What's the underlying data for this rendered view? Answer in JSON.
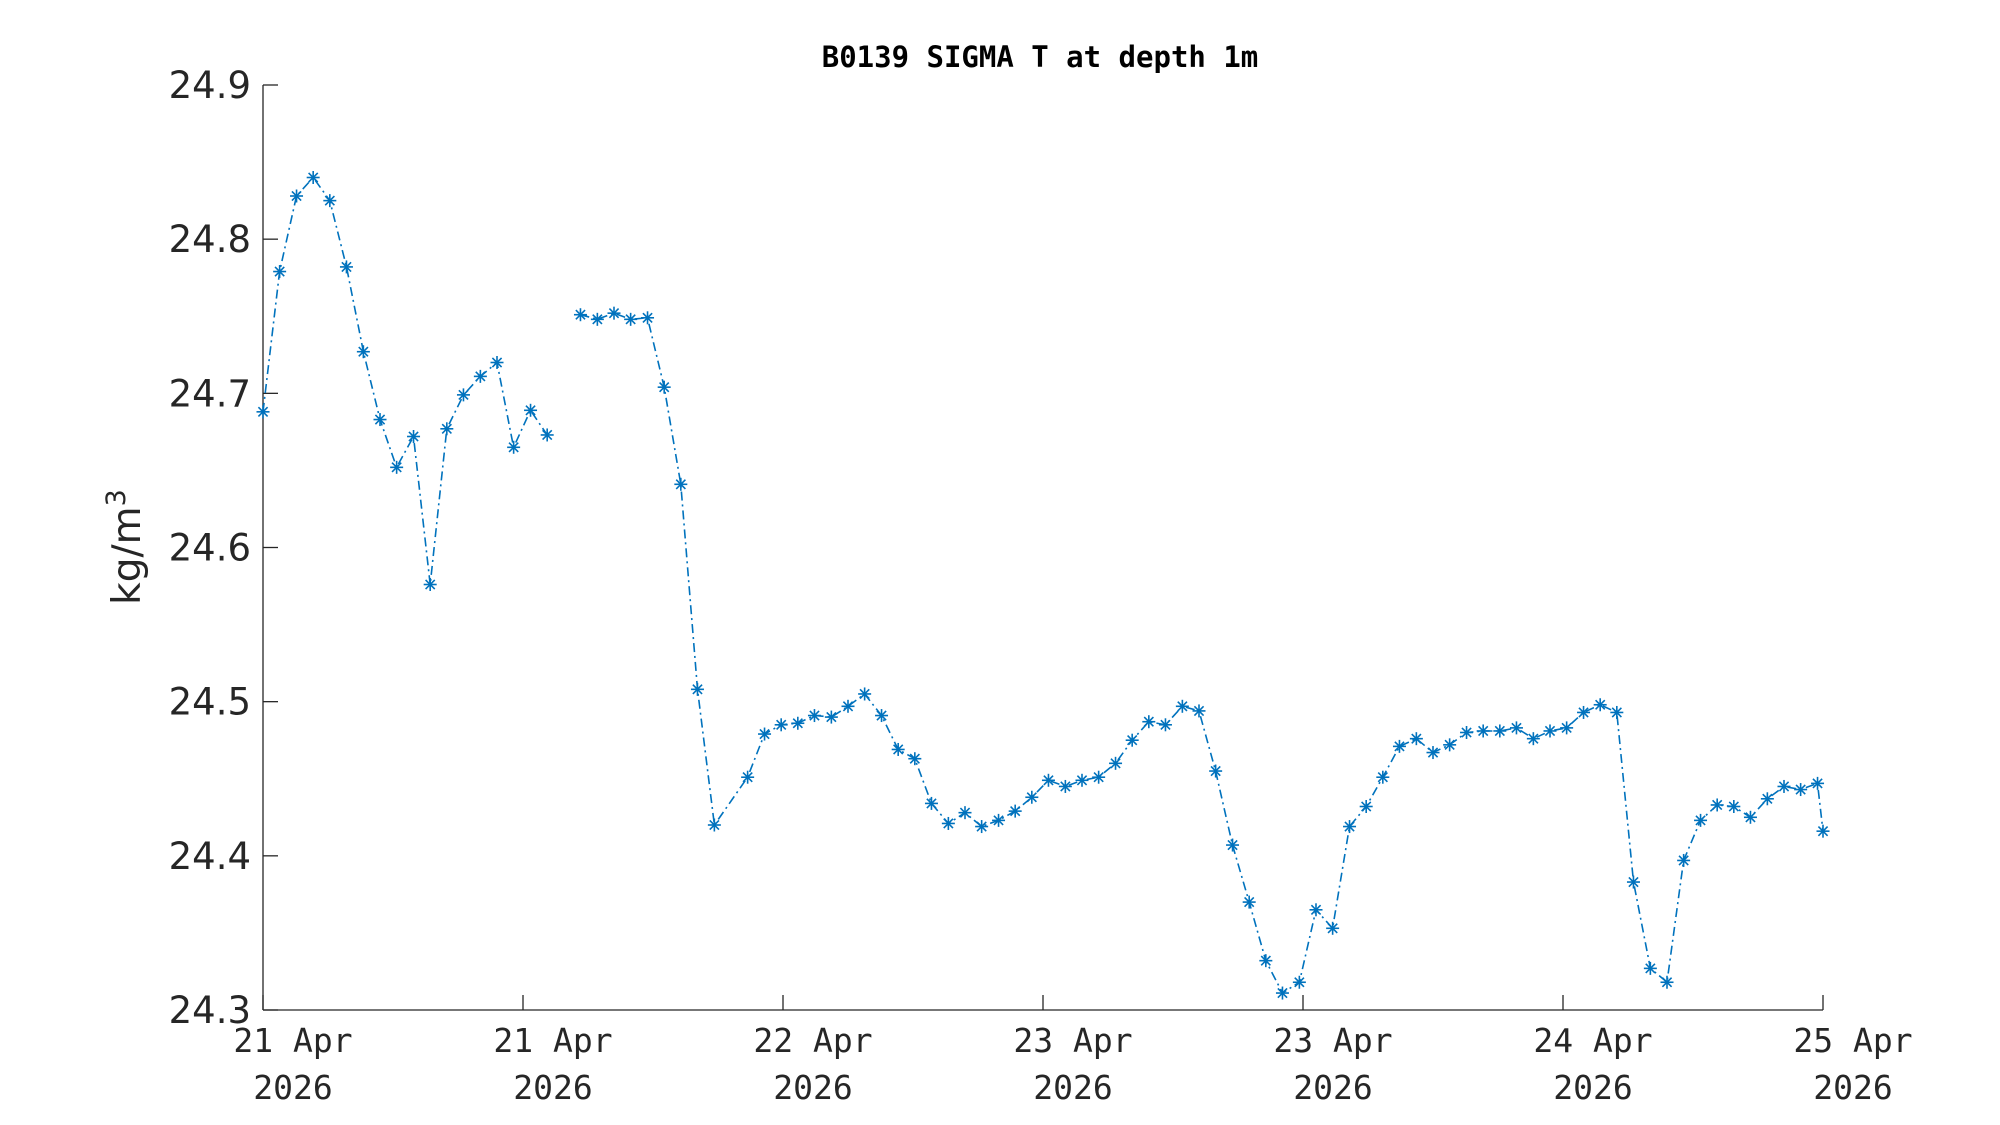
{
  "chart_data": {
    "type": "line",
    "title": "B0139 SIGMA T at depth 1m",
    "ylabel": "kg/m",
    "ylabel_sup": "3",
    "xlabel": "",
    "ylim": [
      24.3,
      24.9
    ],
    "yticks": [
      "24.3",
      "24.4",
      "24.5",
      "24.6",
      "24.7",
      "24.8",
      "24.9"
    ],
    "xlim_days": [
      0,
      6
    ],
    "xticks": [
      {
        "day": "21 Apr",
        "year": "2026"
      },
      {
        "day": "21 Apr",
        "year": "2026"
      },
      {
        "day": "22 Apr",
        "year": "2026"
      },
      {
        "day": "23 Apr",
        "year": "2026"
      },
      {
        "day": "23 Apr",
        "year": "2026"
      },
      {
        "day": "24 Apr",
        "year": "2026"
      },
      {
        "day": "25 Apr",
        "year": "2026"
      }
    ],
    "grid": false,
    "color": "#0072BD",
    "line_style": "dash-dot",
    "marker": "asterisk",
    "series": [
      {
        "segments": [
          [
            [
              0.0,
              24.688
            ],
            [
              0.064,
              24.779
            ],
            [
              0.129,
              24.828
            ],
            [
              0.193,
              24.84
            ],
            [
              0.257,
              24.825
            ],
            [
              0.321,
              24.782
            ],
            [
              0.386,
              24.727
            ],
            [
              0.45,
              24.683
            ],
            [
              0.514,
              24.652
            ],
            [
              0.579,
              24.672
            ],
            [
              0.643,
              24.576
            ],
            [
              0.707,
              24.677
            ],
            [
              0.771,
              24.699
            ],
            [
              0.836,
              24.711
            ],
            [
              0.9,
              24.72
            ],
            [
              0.964,
              24.665
            ],
            [
              1.029,
              24.689
            ],
            [
              1.093,
              24.673
            ]
          ],
          [
            [
              1.221,
              24.751
            ],
            [
              1.286,
              24.748
            ],
            [
              1.35,
              24.752
            ],
            [
              1.414,
              24.748
            ],
            [
              1.479,
              24.749
            ],
            [
              1.543,
              24.704
            ],
            [
              1.607,
              24.641
            ],
            [
              1.671,
              24.508
            ],
            [
              1.736,
              24.42
            ],
            [
              1.864,
              24.451
            ],
            [
              1.929,
              24.479
            ],
            [
              1.993,
              24.485
            ],
            [
              2.057,
              24.486
            ],
            [
              2.121,
              24.491
            ],
            [
              2.186,
              24.49
            ],
            [
              2.25,
              24.497
            ],
            [
              2.314,
              24.505
            ],
            [
              2.379,
              24.491
            ],
            [
              2.443,
              24.469
            ],
            [
              2.507,
              24.463
            ],
            [
              2.571,
              24.434
            ],
            [
              2.636,
              24.421
            ],
            [
              2.7,
              24.428
            ],
            [
              2.764,
              24.419
            ],
            [
              2.829,
              24.423
            ],
            [
              2.893,
              24.429
            ],
            [
              2.957,
              24.438
            ],
            [
              3.021,
              24.449
            ],
            [
              3.086,
              24.445
            ],
            [
              3.15,
              24.449
            ],
            [
              3.214,
              24.451
            ],
            [
              3.279,
              24.46
            ],
            [
              3.343,
              24.475
            ],
            [
              3.407,
              24.487
            ],
            [
              3.471,
              24.485
            ],
            [
              3.536,
              24.497
            ],
            [
              3.6,
              24.494
            ],
            [
              3.664,
              24.455
            ],
            [
              3.729,
              24.407
            ],
            [
              3.793,
              24.37
            ],
            [
              3.857,
              24.332
            ],
            [
              3.921,
              24.311
            ],
            [
              3.986,
              24.318
            ],
            [
              4.05,
              24.365
            ],
            [
              4.114,
              24.353
            ],
            [
              4.179,
              24.419
            ],
            [
              4.243,
              24.432
            ],
            [
              4.307,
              24.451
            ],
            [
              4.371,
              24.471
            ],
            [
              4.436,
              24.476
            ],
            [
              4.5,
              24.467
            ],
            [
              4.564,
              24.472
            ],
            [
              4.629,
              24.48
            ],
            [
              4.693,
              24.481
            ],
            [
              4.757,
              24.481
            ],
            [
              4.821,
              24.483
            ],
            [
              4.886,
              24.476
            ],
            [
              4.95,
              24.481
            ],
            [
              5.014,
              24.483
            ],
            [
              5.079,
              24.493
            ],
            [
              5.143,
              24.498
            ],
            [
              5.207,
              24.493
            ],
            [
              5.271,
              24.383
            ],
            [
              5.336,
              24.327
            ],
            [
              5.4,
              24.318
            ],
            [
              5.464,
              24.397
            ],
            [
              5.529,
              24.423
            ],
            [
              5.593,
              24.433
            ],
            [
              5.657,
              24.432
            ],
            [
              5.721,
              24.425
            ],
            [
              5.786,
              24.437
            ],
            [
              5.85,
              24.445
            ],
            [
              5.914,
              24.443
            ],
            [
              5.979,
              24.447
            ],
            [
              6.0,
              24.416
            ]
          ]
        ]
      }
    ]
  }
}
